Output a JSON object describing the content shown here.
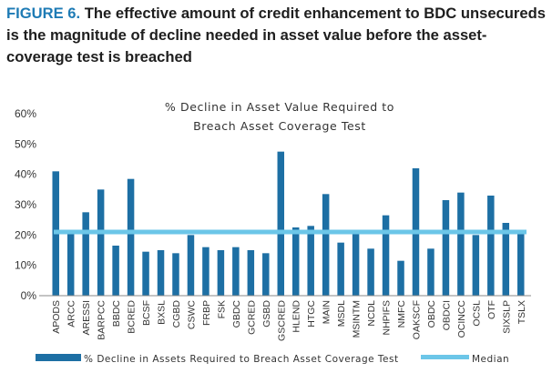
{
  "figure": {
    "label": "FIGURE 6.",
    "title": "The effective amount of credit enhancement to BDC unsecureds is the magnitude of decline needed in asset value before the asset-coverage test is breached"
  },
  "chart_data": {
    "type": "bar",
    "title_lines": [
      "% Decline in Asset Value Required to",
      "Breach Asset Coverage Test"
    ],
    "xlabel": "",
    "ylabel": "",
    "ylim": [
      0,
      60
    ],
    "yticks": [
      0,
      10,
      20,
      30,
      40,
      50,
      60
    ],
    "ytick_format": "percent",
    "grid": false,
    "legend_position": "bottom",
    "categories": [
      "APODS",
      "ARCC",
      "ARESSI",
      "BARPCC",
      "BBDC",
      "BCRED",
      "BCSF",
      "BXSL",
      "CGBD",
      "CSWC",
      "FRBP",
      "FSK",
      "GBDC",
      "GCRED",
      "GSBD",
      "GSCRED",
      "HLEND",
      "HTGC",
      "MAIN",
      "MSDL",
      "MSINTM",
      "NCDL",
      "NHPIFS",
      "NMFC",
      "OAKSCF",
      "OBDC",
      "OBDCI",
      "OCINCC",
      "OCSL",
      "OTF",
      "SIXSLP",
      "TSLX"
    ],
    "series": [
      {
        "name": "% Decline in Assets Required to Breach Asset Coverage Test",
        "kind": "bar",
        "color": "#1d6fa4",
        "values": [
          41,
          20.5,
          27.5,
          35,
          16.5,
          38.5,
          14.5,
          15,
          14,
          20,
          16,
          15,
          16,
          15,
          14,
          47.5,
          22.5,
          23,
          33.5,
          17.5,
          20.5,
          15.5,
          26.5,
          11.5,
          42,
          15.5,
          31.5,
          34,
          20,
          33,
          24,
          20.5
        ]
      },
      {
        "name": "Median",
        "kind": "line",
        "color": "#6cc6e8",
        "value": 21
      }
    ]
  }
}
